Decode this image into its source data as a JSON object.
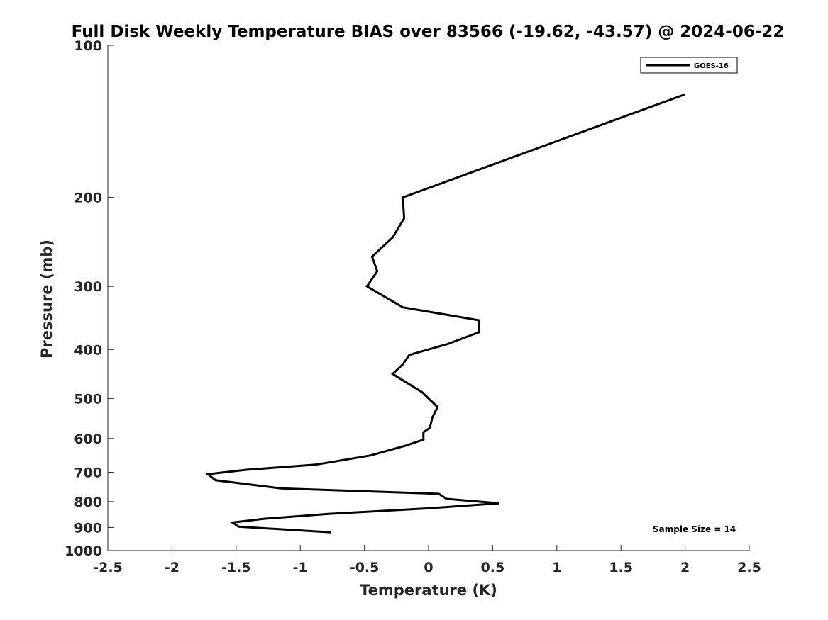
{
  "chart_data": {
    "type": "line",
    "title": "Full Disk Weekly Temperature BIAS over 83566 (-19.62, -43.57) @ 2024-06-22",
    "xlabel": "Temperature (K)",
    "ylabel": "Pressure (mb)",
    "xlim": [
      -2.5,
      2.5
    ],
    "ylim": [
      100,
      1000
    ],
    "y_scale": "log",
    "y_reversed": true,
    "x_ticks": [
      "-2.5",
      "-2",
      "-1.5",
      "-1",
      "-0.5",
      "0",
      "0.5",
      "1",
      "1.5",
      "2",
      "2.5"
    ],
    "y_ticks": [
      "100",
      "200",
      "300",
      "400",
      "500",
      "600",
      "700",
      "800",
      "900",
      "1000"
    ],
    "grid": false,
    "legend_position": "top-right",
    "annotation": "Sample Size = 14",
    "series": [
      {
        "name": "GOES-16",
        "color": "#000000",
        "points": [
          [
            2.0,
            125
          ],
          [
            -0.2,
            200
          ],
          [
            -0.19,
            220
          ],
          [
            -0.28,
            240
          ],
          [
            -0.44,
            262
          ],
          [
            -0.4,
            280
          ],
          [
            -0.48,
            300
          ],
          [
            -0.2,
            330
          ],
          [
            0.39,
            350
          ],
          [
            0.39,
            370
          ],
          [
            0.15,
            390
          ],
          [
            -0.15,
            410
          ],
          [
            -0.2,
            428
          ],
          [
            -0.28,
            447
          ],
          [
            -0.05,
            486
          ],
          [
            0.07,
            520
          ],
          [
            0.03,
            545
          ],
          [
            0.01,
            572
          ],
          [
            -0.04,
            583
          ],
          [
            -0.04,
            603
          ],
          [
            -0.18,
            620
          ],
          [
            -0.45,
            648
          ],
          [
            -0.88,
            676
          ],
          [
            -1.42,
            692
          ],
          [
            -1.72,
            706
          ],
          [
            -1.66,
            726
          ],
          [
            -1.15,
            753
          ],
          [
            0.08,
            772
          ],
          [
            0.14,
            790
          ],
          [
            0.55,
            806
          ],
          [
            0.0,
            825
          ],
          [
            -0.78,
            846
          ],
          [
            -1.28,
            865
          ],
          [
            -1.53,
            880
          ],
          [
            -1.48,
            897
          ],
          [
            -0.76,
            920
          ]
        ]
      }
    ]
  }
}
